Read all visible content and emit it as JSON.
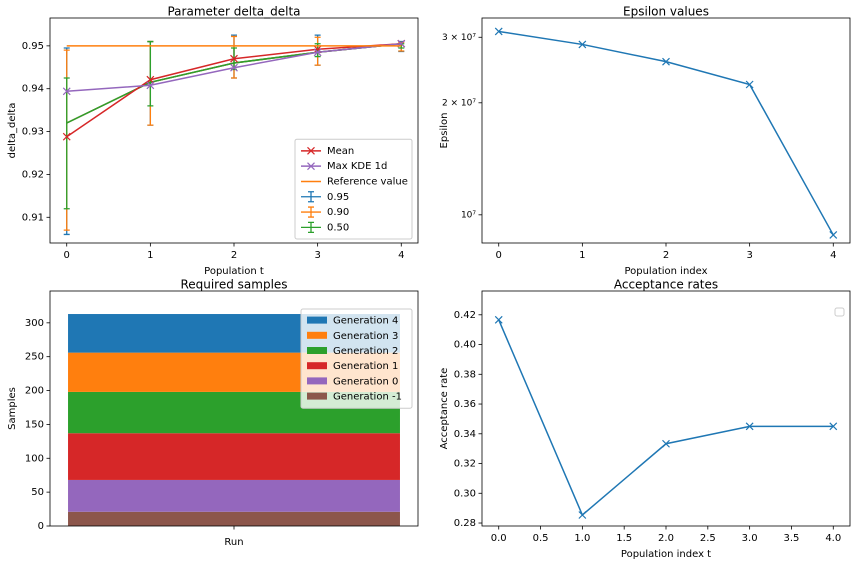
{
  "chart_data": [
    {
      "type": "line",
      "title": "Parameter delta_delta",
      "xlabel": "Population t",
      "ylabel": "delta_delta",
      "x": [
        0,
        1,
        2,
        3,
        4
      ],
      "xlim": [
        -0.2,
        4.2
      ],
      "xticks": [
        0,
        1,
        2,
        3,
        4
      ],
      "ylim": [
        0.904,
        0.9565
      ],
      "yticks": [
        0.91,
        0.92,
        0.93,
        0.94,
        0.95
      ],
      "legend": "lower right",
      "series": [
        {
          "name": "Mean",
          "color": "#d62728",
          "marker": "x",
          "values": [
            0.9288,
            0.9421,
            0.947,
            0.9492,
            0.9505
          ]
        },
        {
          "name": "Max KDE 1d",
          "color": "#9467bd",
          "marker": "x",
          "values": [
            0.9394,
            0.9408,
            0.9449,
            0.9485,
            0.9505
          ]
        },
        {
          "name": "Reference value",
          "color": "#ff7f0e",
          "values": [
            0.95,
            0.95,
            0.95,
            0.95,
            0.95
          ]
        },
        {
          "name": "0.95",
          "color": "#1f77b4",
          "values": [
            0.932,
            0.9415,
            0.946,
            0.9485,
            0.9505
          ],
          "lower": [
            0.906,
            0.9315,
            0.9425,
            0.9455,
            0.9487
          ],
          "upper": [
            0.9495,
            0.951,
            0.9525,
            0.9525,
            0.951
          ]
        },
        {
          "name": "0.90",
          "color": "#ff7f0e",
          "values": [
            0.932,
            0.9415,
            0.946,
            0.9485,
            0.9505
          ],
          "lower": [
            0.907,
            0.9315,
            0.9425,
            0.9455,
            0.9488
          ],
          "upper": [
            0.949,
            0.951,
            0.9522,
            0.952,
            0.9508
          ]
        },
        {
          "name": "0.50",
          "color": "#2ca02c",
          "values": [
            0.932,
            0.9415,
            0.946,
            0.9485,
            0.9505
          ],
          "lower": [
            0.912,
            0.936,
            0.9445,
            0.9475,
            0.9495
          ],
          "upper": [
            0.9425,
            0.951,
            0.9495,
            0.9505,
            0.9505
          ]
        }
      ]
    },
    {
      "type": "line",
      "title": "Epsilon values",
      "xlabel": "Population index",
      "ylabel": "Epsilon",
      "yscale": "log",
      "x": [
        0,
        1,
        2,
        3,
        4
      ],
      "xlim": [
        -0.2,
        4.2
      ],
      "xticks": [
        0,
        1,
        2,
        3,
        4
      ],
      "ylim": [
        8400000,
        33800000
      ],
      "yticks": [
        {
          "value": 10000000,
          "label": "10⁷"
        },
        {
          "value": 20000000,
          "label": "2 × 10⁷"
        },
        {
          "value": 30000000,
          "label": "3 × 10⁷"
        }
      ],
      "series": [
        {
          "color": "#1f77b4",
          "marker": "x",
          "values": [
            31100000,
            28700000,
            25800000,
            22400000,
            8830000
          ]
        }
      ]
    },
    {
      "type": "bar",
      "stacked": true,
      "title": "Required samples",
      "ylabel": "Samples",
      "categories": [
        "Run"
      ],
      "ylim": [
        0,
        347
      ],
      "yticks": [
        0,
        50,
        100,
        150,
        200,
        250,
        300
      ],
      "legend": "upper right",
      "series": [
        {
          "name": "Generation -1",
          "color": "#8c564b",
          "values": [
            21
          ]
        },
        {
          "name": "Generation 0",
          "color": "#9467bd",
          "values": [
            47
          ]
        },
        {
          "name": "Generation 1",
          "color": "#d62728",
          "values": [
            69
          ]
        },
        {
          "name": "Generation 2",
          "color": "#2ca02c",
          "values": [
            61
          ]
        },
        {
          "name": "Generation 3",
          "color": "#ff7f0e",
          "values": [
            58
          ]
        },
        {
          "name": "Generation 4",
          "color": "#1f77b4",
          "values": [
            57
          ]
        }
      ]
    },
    {
      "type": "line",
      "title": "Acceptance rates",
      "xlabel": "Population index t",
      "ylabel": "Acceptance rate",
      "x": [
        0,
        1,
        2,
        3,
        4
      ],
      "xlim": [
        -0.2,
        4.2
      ],
      "xticks": [
        {
          "value": 0,
          "label": "0.0"
        },
        0.5,
        {
          "value": 1,
          "label": "1.0"
        },
        1.5,
        {
          "value": 2,
          "label": "2.0"
        },
        2.5,
        {
          "value": 3,
          "label": "3.0"
        },
        3.5,
        {
          "value": 4,
          "label": "4.0"
        }
      ],
      "ylim": [
        0.278,
        0.436
      ],
      "yticks": [
        0.28,
        {
          "value": 0.3,
          "label": "0.30"
        },
        0.32,
        0.34,
        0.36,
        0.38,
        {
          "value": 0.4,
          "label": "0.40"
        },
        0.42
      ],
      "legend": "upper right",
      "series": [
        {
          "color": "#1f77b4",
          "marker": "x",
          "values": [
            0.4166,
            0.2854,
            0.3333,
            0.345,
            0.345
          ]
        }
      ]
    }
  ]
}
